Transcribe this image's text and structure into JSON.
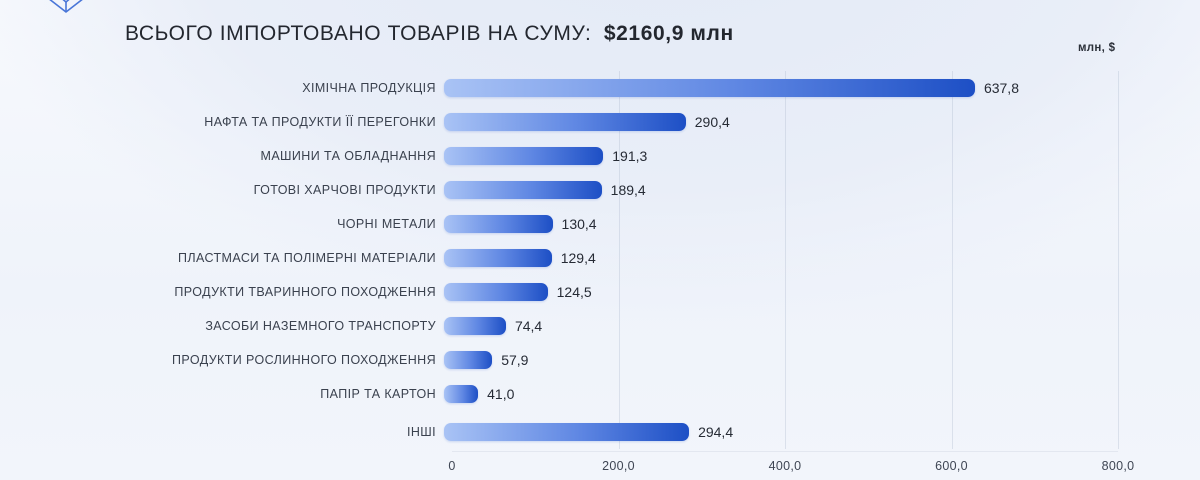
{
  "header": {
    "title_prefix": "ВСЬОГО ІМПОРТОВАНО ТОВАРІВ НА СУМУ:",
    "title_value": "$2160,9 млн",
    "unit_label": "млн, $"
  },
  "colors": {
    "bar_gradient_start": "#a9c3f5",
    "bar_gradient_end": "#1d4fc5",
    "background": "#eff3fa",
    "text_dark": "#23272f",
    "logo_blue": "#4a76d8"
  },
  "chart_data": {
    "type": "bar",
    "orientation": "horizontal",
    "title": "ВСЬОГО ІМПОРТОВАНО ТОВАРІВ НА СУМУ: $2160,9 млн",
    "unit": "млн, $",
    "categories": [
      "ХІМІЧНА ПРОДУКЦІЯ",
      "НАФТА ТА ПРОДУКТИ ЇЇ ПЕРЕГОНКИ",
      "МАШИНИ ТА ОБЛАДНАННЯ",
      "ГОТОВІ ХАРЧОВІ ПРОДУКТИ",
      "ЧОРНІ МЕТАЛИ",
      "ПЛАСТМАСИ ТА ПОЛІМЕРНІ МАТЕРІАЛИ",
      "ПРОДУКТИ ТВАРИННОГО ПОХОДЖЕННЯ",
      "ЗАСОБИ НАЗЕМНОГО ТРАНСПОРТУ",
      "ПРОДУКТИ РОСЛИННОГО ПОХОДЖЕННЯ",
      "ПАПІР ТА КАРТОН",
      "ІНШІ"
    ],
    "values": [
      637.8,
      290.4,
      191.3,
      189.4,
      130.4,
      129.4,
      124.5,
      74.4,
      57.9,
      41.0,
      294.4
    ],
    "value_labels": [
      "637,8",
      "290,4",
      "191,3",
      "189,4",
      "130,4",
      "129,4",
      "124,5",
      "74,4",
      "57,9",
      "41,0",
      "294,4"
    ],
    "xlabel": "",
    "ylabel": "",
    "xlim": [
      0,
      800
    ],
    "x_ticks": [
      0,
      200,
      400,
      600,
      800
    ],
    "x_tick_labels": [
      "0",
      "200,0",
      "400,0",
      "600,0",
      "800,0"
    ],
    "grid": "vertical",
    "legend": "none"
  }
}
